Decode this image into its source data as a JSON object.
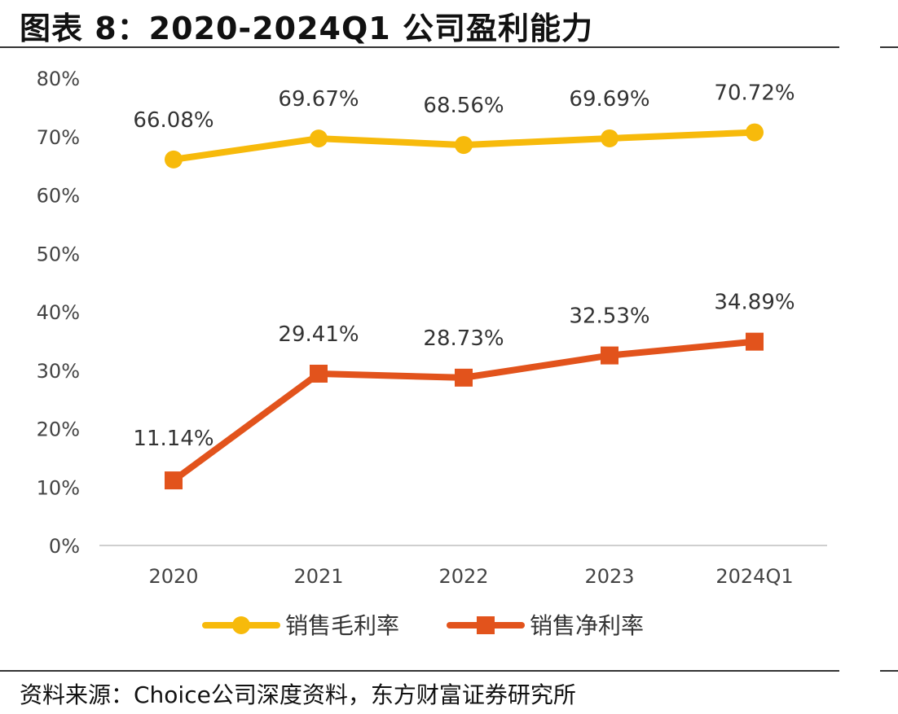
{
  "page": {
    "title": "图表 8：2020-2024Q1 公司盈利能力",
    "source": "资料来源：Choice公司深度资料，东方财富证券研究所"
  },
  "chart_data": {
    "type": "line",
    "categories": [
      "2020",
      "2021",
      "2022",
      "2023",
      "2024Q1"
    ],
    "ylim": [
      0,
      80
    ],
    "yticks": [
      "0%",
      "10%",
      "20%",
      "30%",
      "40%",
      "50%",
      "60%",
      "70%",
      "80%"
    ],
    "grid": false,
    "legend_position": "bottom",
    "series": [
      {
        "name": "销售毛利率",
        "values": [
          66.08,
          69.67,
          68.56,
          69.69,
          70.72
        ],
        "labels": [
          "66.08%",
          "69.67%",
          "68.56%",
          "69.69%",
          "70.72%"
        ],
        "color": "#F7BA0B",
        "marker": "circle"
      },
      {
        "name": "销售净利率",
        "values": [
          11.14,
          29.41,
          28.73,
          32.53,
          34.89
        ],
        "labels": [
          "11.14%",
          "29.41%",
          "28.73%",
          "32.53%",
          "34.89%"
        ],
        "color": "#E2531C",
        "marker": "square"
      }
    ]
  }
}
